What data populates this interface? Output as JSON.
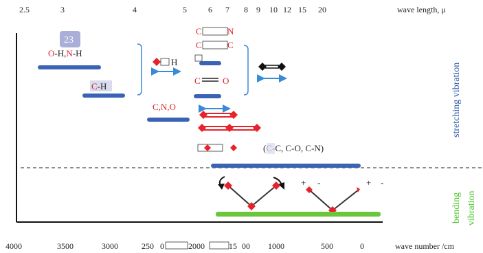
{
  "top_axis": {
    "ticks": [
      "2.5",
      "3",
      "4",
      "5",
      "6",
      "7",
      "8",
      "9",
      "10",
      "12",
      "15",
      "20"
    ],
    "label": "wave length, μ"
  },
  "bottom_axis": {
    "ticks": [
      "4000",
      "3500",
      "3000",
      "250",
      "0",
      "2000",
      "15",
      "00",
      "1000",
      "500",
      "0"
    ],
    "label": "wave number /cm"
  },
  "badge": "23",
  "labels": {
    "oh_nh": {
      "o": "O",
      "mid": "-H,",
      "n": "N",
      "end": "-H"
    },
    "ch": {
      "c": "C",
      "end": "-H"
    },
    "cn_o": "C,N,O",
    "h": "H",
    "c_triple_n": {
      "c": "C",
      "n": "N"
    },
    "c_triple_c": {
      "c": "C",
      "c2": "C"
    },
    "c_double_o": {
      "c": "C",
      "o": "O"
    },
    "single_bonds": {
      "open": "(",
      "c": "C",
      "rest": "-C, C-O, C-N)"
    }
  },
  "regions": {
    "stretching": "stretching vibration",
    "bending_line1": "bending",
    "bending_line2": "vibration"
  },
  "bending_signs": [
    "+",
    "-",
    "+",
    "-"
  ],
  "colors": {
    "bar_blue": "#3b63b5",
    "bar_green": "#6cc63a",
    "atom_red": "#e8212a",
    "arrow_blue": "#3a8ad6",
    "badge_bg": "#a9afd9"
  }
}
